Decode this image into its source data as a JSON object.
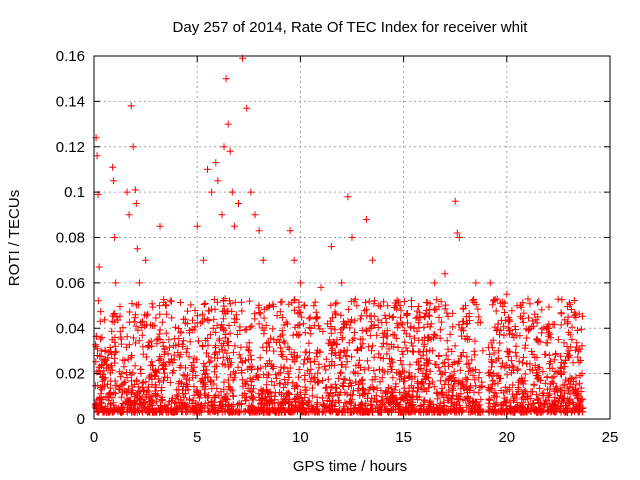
{
  "chart_data": {
    "type": "scatter",
    "title": "Day 257 of 2014, Rate Of TEC Index for receiver whit",
    "xlabel": "GPS time / hours",
    "ylabel": "ROTI / TECUs",
    "xlim": [
      0,
      25
    ],
    "ylim": [
      0,
      0.16
    ],
    "xticks": [
      0,
      5,
      10,
      15,
      20,
      25
    ],
    "xtick_labels": [
      "0",
      "5",
      "10",
      "15",
      "20",
      "25"
    ],
    "yticks": [
      0,
      0.02,
      0.04,
      0.06,
      0.08,
      0.1,
      0.12,
      0.14,
      0.16
    ],
    "ytick_labels": [
      "0",
      "0.02",
      "0.04",
      "0.06",
      "0.08",
      "0.1",
      "0.12",
      "0.14",
      "0.16"
    ],
    "grid": true,
    "marker": "+",
    "color": "#ff0000",
    "series": [
      {
        "name": "ROTI",
        "x": [
          0.1,
          0.15,
          0.2,
          0.25,
          0.3,
          0.35,
          0.9,
          0.95,
          1.0,
          1.05,
          1.1,
          1.6,
          1.7,
          1.8,
          1.9,
          2.0,
          2.05,
          2.1,
          2.2,
          2.5,
          3.2,
          3.5,
          5.0,
          5.3,
          5.5,
          5.7,
          5.9,
          6.0,
          6.2,
          6.3,
          6.4,
          6.5,
          6.6,
          6.7,
          6.8,
          7.0,
          7.2,
          7.4,
          7.6,
          7.8,
          8.0,
          8.2,
          8.5,
          9.5,
          9.7,
          10.0,
          10.2,
          11.0,
          11.5,
          12.0,
          12.3,
          12.5,
          13.2,
          13.5,
          13.8,
          14.5,
          15.5,
          16.0,
          16.5,
          17.0,
          17.5,
          17.6,
          17.7,
          18.0,
          18.5,
          19.2,
          20.0,
          20.5,
          21.5,
          22.0,
          22.5,
          23.0,
          23.5
        ],
        "y": [
          0.124,
          0.116,
          0.099,
          0.067,
          0.043,
          0.03,
          0.111,
          0.105,
          0.08,
          0.06,
          0.045,
          0.1,
          0.09,
          0.138,
          0.12,
          0.101,
          0.095,
          0.075,
          0.06,
          0.07,
          0.085,
          0.05,
          0.085,
          0.07,
          0.11,
          0.1,
          0.113,
          0.105,
          0.09,
          0.12,
          0.15,
          0.13,
          0.118,
          0.1,
          0.085,
          0.095,
          0.159,
          0.137,
          0.1,
          0.09,
          0.083,
          0.07,
          0.05,
          0.083,
          0.07,
          0.06,
          0.05,
          0.058,
          0.076,
          0.06,
          0.098,
          0.08,
          0.088,
          0.07,
          0.05,
          0.045,
          0.04,
          0.045,
          0.06,
          0.064,
          0.096,
          0.082,
          0.08,
          0.05,
          0.06,
          0.06,
          0.055,
          0.05,
          0.045,
          0.04,
          0.035,
          0.03,
          0.025
        ]
      }
    ]
  }
}
